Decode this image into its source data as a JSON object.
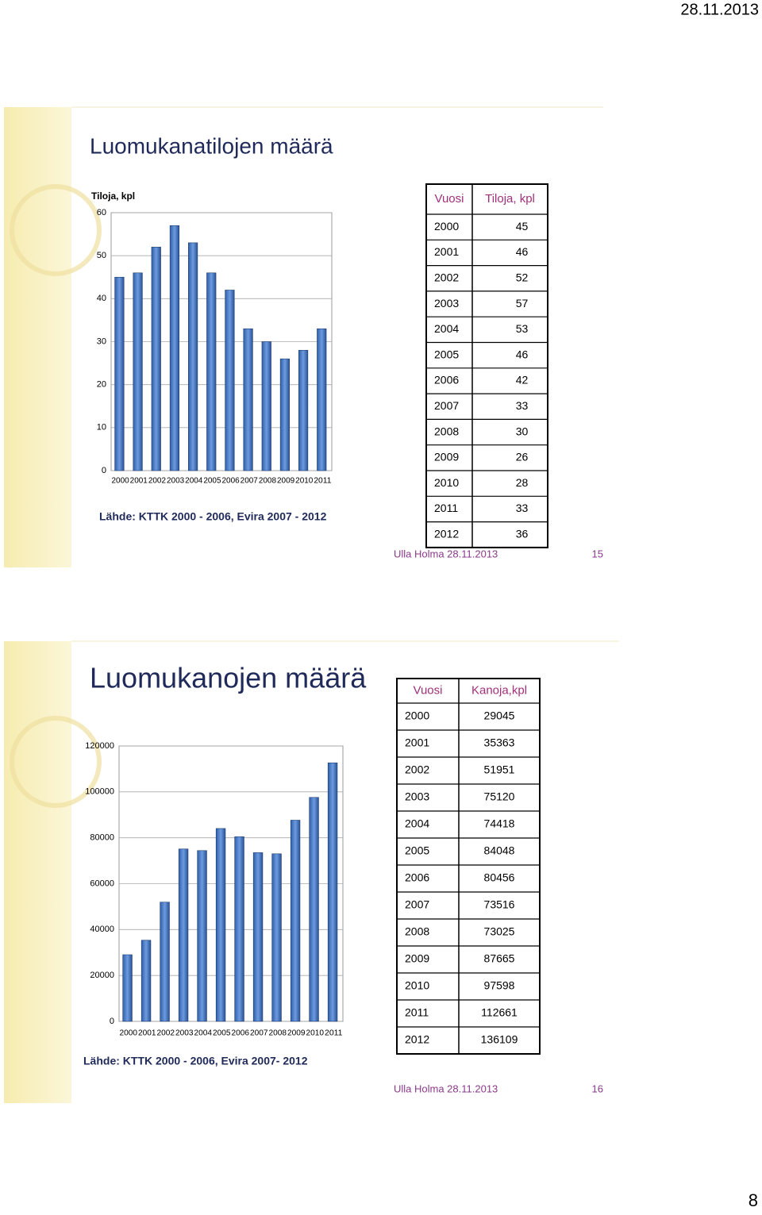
{
  "header_date": "28.11.2013",
  "chart_data": [
    {
      "type": "bar",
      "title": "Luomukanatilojen määrä",
      "y_label": "Tiloja, kpl",
      "color": "#4a7cc4",
      "categories": [
        "2000",
        "2001",
        "2002",
        "2003",
        "2004",
        "2005",
        "2006",
        "2007",
        "2008",
        "2009",
        "2010",
        "2011"
      ],
      "values": [
        45,
        46,
        52,
        57,
        53,
        46,
        42,
        33,
        30,
        26,
        28,
        33
      ],
      "ylim": [
        0,
        60
      ],
      "yticks": [
        0,
        10,
        20,
        30,
        40,
        50,
        60
      ]
    },
    {
      "type": "bar",
      "title": "Luomukanojen määrä",
      "color": "#4a7cc4",
      "categories": [
        "2000",
        "2001",
        "2002",
        "2003",
        "2004",
        "2005",
        "2006",
        "2007",
        "2008",
        "2009",
        "2010",
        "2011"
      ],
      "values": [
        29045,
        35363,
        51951,
        75120,
        74418,
        84048,
        80456,
        73516,
        73025,
        87665,
        97598,
        112661
      ],
      "ylim": [
        0,
        120000
      ],
      "yticks": [
        0,
        20000,
        40000,
        60000,
        80000,
        100000,
        120000
      ]
    }
  ],
  "slides": [
    {
      "table": {
        "header": [
          "Vuosi",
          "Tiloja, kpl"
        ],
        "rows": [
          [
            2000,
            45
          ],
          [
            2001,
            46
          ],
          [
            2002,
            52
          ],
          [
            2003,
            57
          ],
          [
            2004,
            53
          ],
          [
            2005,
            46
          ],
          [
            2006,
            42
          ],
          [
            2007,
            33
          ],
          [
            2008,
            30
          ],
          [
            2009,
            26
          ],
          [
            2010,
            28
          ],
          [
            2011,
            33
          ],
          [
            2012,
            36
          ]
        ]
      },
      "source": "Lähde: KTTK 2000 - 2006, Evira 2007 - 2012",
      "footer": "Ulla Holma 28.11.2013",
      "number": "15"
    },
    {
      "table": {
        "header": [
          "Vuosi",
          "Kanoja,kpl"
        ],
        "rows": [
          [
            2000,
            29045
          ],
          [
            2001,
            35363
          ],
          [
            2002,
            51951
          ],
          [
            2003,
            75120
          ],
          [
            2004,
            74418
          ],
          [
            2005,
            84048
          ],
          [
            2006,
            80456
          ],
          [
            2007,
            73516
          ],
          [
            2008,
            73025
          ],
          [
            2009,
            87665
          ],
          [
            2010,
            97598
          ],
          [
            2011,
            112661
          ],
          [
            2012,
            136109
          ]
        ]
      },
      "source": "Lähde: KTTK 2000 - 2006, Evira 2007- 2012",
      "footer": "Ulla Holma 28.11.2013",
      "number": "16"
    }
  ],
  "page_number": "8"
}
